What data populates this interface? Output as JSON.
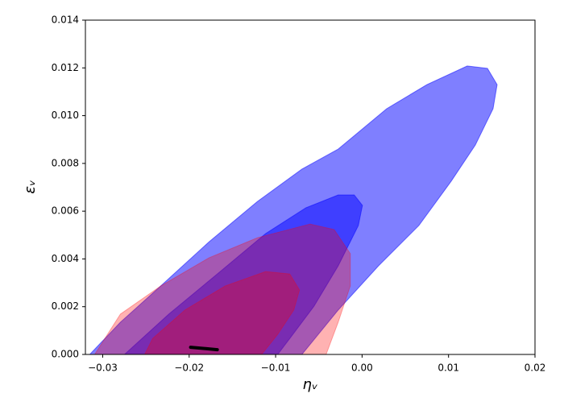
{
  "chart_data": {
    "type": "contour",
    "xlabel": "ηᵥ",
    "ylabel": "εᵥ",
    "xlim": [
      -0.032,
      0.02
    ],
    "xticks": [
      {
        "value": -0.03,
        "label": "−0.03"
      },
      {
        "value": -0.02,
        "label": "−0.02"
      },
      {
        "value": -0.01,
        "label": "−0.01"
      },
      {
        "value": 0,
        "label": "0.00"
      },
      {
        "value": 0.01,
        "label": "0.01"
      },
      {
        "value": 0.02,
        "label": "0.02"
      }
    ],
    "ylim": [
      0,
      0.014
    ],
    "yticks": [
      {
        "value": 0,
        "label": "0.000"
      },
      {
        "value": 0.002,
        "label": "0.002"
      },
      {
        "value": 0.004,
        "label": "0.004"
      },
      {
        "value": 0.006,
        "label": "0.006"
      },
      {
        "value": 0.008,
        "label": "0.008"
      },
      {
        "value": 0.01,
        "label": "0.010"
      },
      {
        "value": 0.012,
        "label": "0.012"
      },
      {
        "value": 0.014,
        "label": "0.014"
      }
    ],
    "series": [
      {
        "color": "#0000ff",
        "opacity": 0.5,
        "fill": true,
        "x": [
          -0.0315,
          -0.02795,
          -0.02328,
          -0.01769,
          -0.01209,
          -0.00696,
          -0.00276,
          0.00284,
          0.0075,
          0.01216,
          0.0145,
          0.01562,
          0.01515,
          0.0131,
          0.0103,
          0.00657,
          0.0019,
          -0.00276,
          -0.00696
        ],
        "y": [
          0,
          0.00135,
          0.00287,
          0.00472,
          0.00641,
          0.00776,
          0.0086,
          0.01029,
          0.0113,
          0.01208,
          0.01198,
          0.0113,
          0.01029,
          0.00877,
          0.00725,
          0.0054,
          0.00371,
          0.00186,
          0
        ]
      },
      {
        "color": "#0000ff",
        "opacity": 0.5,
        "fill": true,
        "x": [
          -0.02748,
          -0.02235,
          -0.01675,
          -0.01116,
          -0.0065,
          -0.00276,
          -0.00091,
          4e-05,
          -0.00043,
          -0.00276,
          -0.00556,
          -0.00836,
          -0.00976
        ],
        "y": [
          0,
          0.00169,
          0.00337,
          0.00506,
          0.00614,
          0.00668,
          0.00668,
          0.00624,
          0.0054,
          0.00371,
          0.00202,
          0.00067,
          0
        ]
      },
      {
        "color": "#ff0000",
        "opacity": 0.3,
        "fill": true,
        "x": [
          -0.03093,
          -0.02795,
          -0.02328,
          -0.01769,
          -0.01209,
          -0.00603,
          -0.00323,
          -0.00136,
          -0.00136,
          -0.00276,
          -0.00416
        ],
        "y": [
          0,
          0.00169,
          0.00287,
          0.00405,
          0.00489,
          0.00546,
          0.00523,
          0.00422,
          0.00287,
          0.00135,
          0
        ]
      },
      {
        "color": "#ff0000",
        "opacity": 0.3,
        "fill": true,
        "x": [
          -0.02515,
          -0.02422,
          -0.02049,
          -0.01582,
          -0.01116,
          -0.00836,
          -0.00724,
          -0.0079,
          -0.00976,
          -0.01162
        ],
        "y": [
          0,
          0.00067,
          0.00186,
          0.00287,
          0.00347,
          0.00337,
          0.0027,
          0.00186,
          0.00084,
          0
        ]
      },
      {
        "color": "#000000",
        "opacity": 1,
        "fill": false,
        "x": [
          -0.01983,
          -0.01675
        ],
        "y": [
          0.0003,
          0.0002
        ]
      }
    ]
  }
}
